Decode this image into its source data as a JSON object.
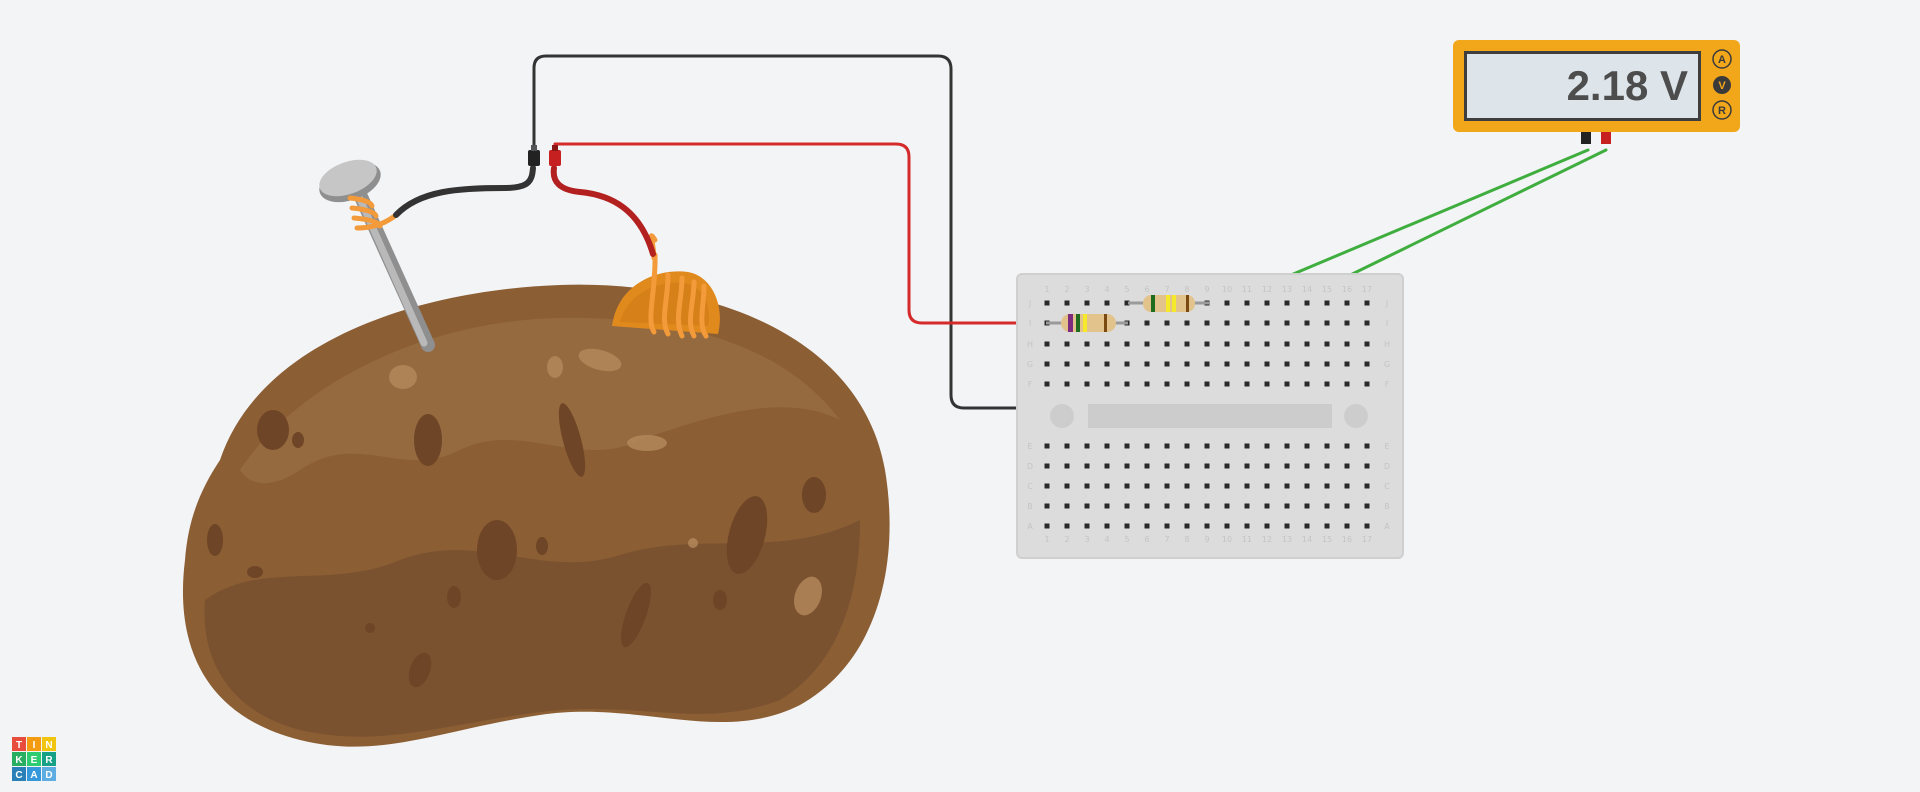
{
  "app": {
    "logo": {
      "letters": [
        [
          "T",
          "I",
          "N"
        ],
        [
          "K",
          "E",
          "R"
        ],
        [
          "C",
          "A",
          "D"
        ]
      ],
      "colors": [
        "#e74c3c",
        "#f39c12",
        "#f1c40f",
        "#27ae60",
        "#2ecc71",
        "#16a085",
        "#2980b9",
        "#3498db",
        "#5dade2"
      ]
    }
  },
  "multimeter": {
    "reading": "2.18 V",
    "modes": [
      "A",
      "V",
      "R"
    ],
    "body_color": "#f2a71b",
    "screen_color": "#dde5ea"
  },
  "breadboard": {
    "top_col_labels": [
      "1",
      "2",
      "3",
      "4",
      "5",
      "6",
      "7",
      "8",
      "9",
      "10",
      "11",
      "12",
      "13",
      "14",
      "15",
      "16",
      "17"
    ],
    "top_row_labels": [
      "J",
      "I",
      "H",
      "G",
      "F"
    ],
    "bottom_row_labels": [
      "E",
      "D",
      "C",
      "B",
      "A"
    ]
  },
  "potato": {
    "color": "#8b5e34",
    "shade_color": "#7a5230",
    "highlight_color": "#a07548"
  },
  "electrodes": {
    "nail_color": "#a9a9a9",
    "copper_color": "#e08a1e",
    "coil_color": "#f39a3a"
  },
  "wires": {
    "black": "#333333",
    "red": "#d42a2a",
    "green": "#3fae3f",
    "dark_red": "#b32020"
  }
}
